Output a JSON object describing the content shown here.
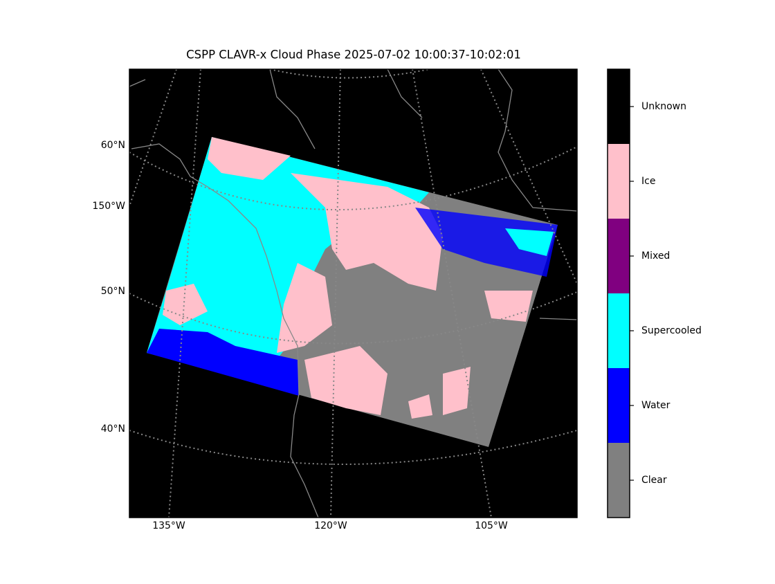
{
  "title": "CSPP CLAVR-x Cloud Phase 2025-07-02 10:00:37-10:02:01",
  "lat_labels": [
    "60°N",
    "150°W",
    "50°N",
    "40°N"
  ],
  "lon_labels": [
    "135°W",
    "120°W",
    "105°W"
  ],
  "legend": {
    "categories": [
      {
        "label": "Unknown",
        "color": "#000000"
      },
      {
        "label": "Ice",
        "color": "#ffc0cb"
      },
      {
        "label": "Mixed",
        "color": "#800080"
      },
      {
        "label": "Supercooled",
        "color": "#00ffff"
      },
      {
        "label": "Water",
        "color": "#0000ff"
      },
      {
        "label": "Clear",
        "color": "#808080"
      }
    ]
  }
}
